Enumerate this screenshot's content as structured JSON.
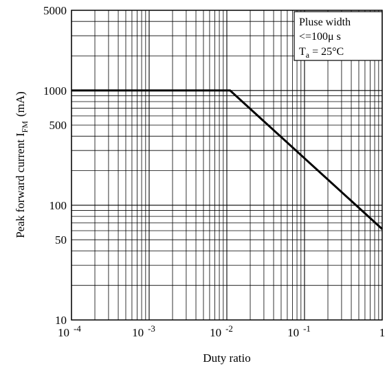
{
  "chart_data": {
    "type": "line",
    "xlabel": "Duty ratio",
    "ylabel": {
      "main": "Peak forward current I",
      "sub": "FM",
      "unit": "(mA)"
    },
    "xscale": "log",
    "yscale": "log",
    "xlim": [
      0.0001,
      1
    ],
    "ylim": [
      10,
      5000
    ],
    "grid": true,
    "x_ticks": [
      {
        "value": 0.0001,
        "base": "10",
        "exp": "-4"
      },
      {
        "value": 0.001,
        "base": "10",
        "exp": "-3"
      },
      {
        "value": 0.01,
        "base": "10",
        "exp": "-2"
      },
      {
        "value": 0.1,
        "base": "10",
        "exp": "-1"
      },
      {
        "value": 1,
        "base": "1",
        "exp": ""
      }
    ],
    "y_ticks": [
      {
        "value": 10,
        "label": "10"
      },
      {
        "value": 50,
        "label": "50"
      },
      {
        "value": 100,
        "label": "100"
      },
      {
        "value": 500,
        "label": "500"
      },
      {
        "value": 1000,
        "label": "1000"
      },
      {
        "value": 5000,
        "label": "5000"
      }
    ],
    "series": [
      {
        "x": [
          0.0001,
          0.011,
          1
        ],
        "y": [
          1000,
          1000,
          62
        ]
      }
    ],
    "legend": {
      "placement": "top-right",
      "line1": "Pluse width",
      "line2": "<=100μ s",
      "line3_main": "T",
      "line3_sub": "a",
      "line3_rest": " = 25°C"
    }
  }
}
